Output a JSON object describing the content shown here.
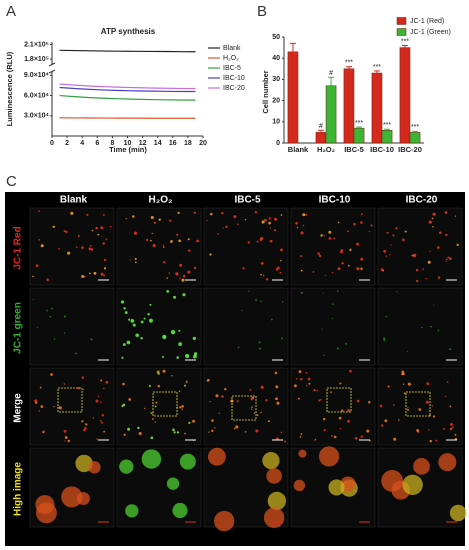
{
  "chart_data": [
    {
      "type": "line",
      "panel_label": "A",
      "title": "ATP synthesis",
      "xlabel": "Time (min)",
      "ylabel": "Luminescence (RLU)",
      "x": [
        1,
        3,
        5,
        7,
        9,
        11,
        13,
        15,
        17,
        19
      ],
      "series": [
        {
          "name": "Blank",
          "color": "#222222",
          "values": [
            198000,
            197500,
            197000,
            196500,
            196200,
            196000,
            195700,
            195500,
            195200,
            195000
          ]
        },
        {
          "name": "H₂O₂",
          "color": "#e0552a",
          "values": [
            27000,
            26800,
            26700,
            26600,
            26500,
            26500,
            26400,
            26400,
            26300,
            26300
          ]
        },
        {
          "name": "IBC-5",
          "color": "#2f9e44",
          "values": [
            60000,
            58500,
            57000,
            56000,
            55200,
            54600,
            54100,
            53700,
            53400,
            53200
          ]
        },
        {
          "name": "IBC-10",
          "color": "#4b3fc4",
          "values": [
            72000,
            70500,
            69200,
            68200,
            67500,
            67000,
            66600,
            66300,
            66100,
            66000
          ]
        },
        {
          "name": "IBC-20",
          "color": "#c56ee0",
          "values": [
            77000,
            75500,
            74200,
            73200,
            72400,
            71800,
            71300,
            70900,
            70600,
            70400
          ]
        }
      ],
      "xlim": [
        0,
        20
      ],
      "xticks": [
        0,
        2,
        4,
        6,
        8,
        10,
        12,
        14,
        16,
        18,
        20
      ],
      "ylim": [
        0,
        215000
      ],
      "axis_break": [
        95000,
        170000
      ],
      "yticks": [
        {
          "value": 30000,
          "label": "3.0×10⁴"
        },
        {
          "value": 60000,
          "label": "6.0×10⁴"
        },
        {
          "value": 90000,
          "label": "9.0×10⁴"
        },
        {
          "value": 180000,
          "label": "1.8×10⁵"
        },
        {
          "value": 210000,
          "label": "2.1×10⁵"
        }
      ]
    },
    {
      "type": "bar",
      "panel_label": "B",
      "ylabel": "Cell number",
      "categories": [
        "Blank",
        "H₂O₂",
        "IBC-5",
        "IBC-10",
        "IBC-20"
      ],
      "series": [
        {
          "name": "JC-1 (Red)",
          "color": "#d42a1e",
          "values": [
            43,
            5,
            35,
            33,
            45
          ],
          "errors": [
            4,
            1,
            1,
            1,
            1
          ],
          "annotations": [
            null,
            "#",
            "***",
            "***",
            "***"
          ]
        },
        {
          "name": "JC-1 (Green)",
          "color": "#3cb534",
          "values": [
            null,
            27,
            7,
            6,
            5
          ],
          "errors": [
            null,
            4,
            0.5,
            0.5,
            0.5
          ],
          "annotations": [
            null,
            "#",
            "***",
            "***",
            "***"
          ]
        }
      ],
      "ylim": [
        0,
        50
      ],
      "yticks": [
        0,
        10,
        20,
        30,
        40,
        50
      ],
      "legend": "top-right"
    }
  ],
  "panel_c": {
    "label": "C",
    "columns": [
      "Blank",
      "H₂O₂",
      "IBC-5",
      "IBC-10",
      "IBC-20"
    ],
    "rows": [
      {
        "label": "JC-1 Red",
        "color": "#e0271b"
      },
      {
        "label": "JC-1 green",
        "color": "#2fb52c"
      },
      {
        "label": "Merge",
        "color": "#ffffff"
      },
      {
        "label": "High image",
        "color": "#f0e020"
      }
    ]
  }
}
